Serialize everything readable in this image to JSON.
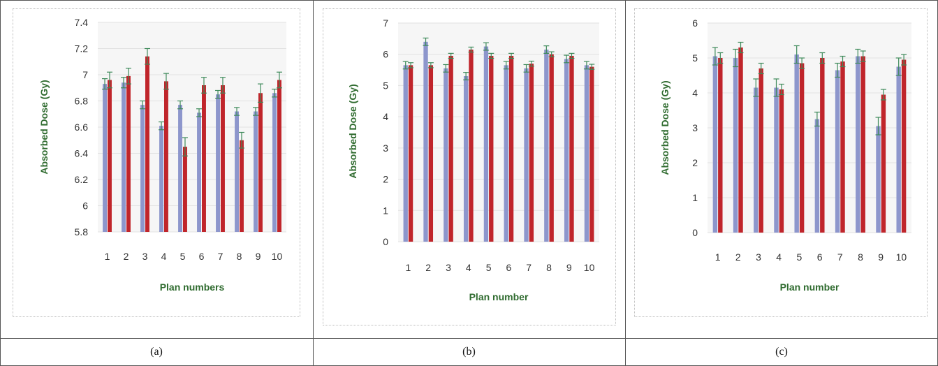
{
  "panels": [
    {
      "caption": "(a)"
    },
    {
      "caption": "(b)"
    },
    {
      "caption": "(c)"
    }
  ],
  "colors": {
    "series_blue": "#8d96cc",
    "series_red": "#c0252b",
    "error_bar": "#3e8a5a",
    "axis_label": "#2f6b2f",
    "grid": "#e2e2e2",
    "plot_bg": "#f6f6f6"
  },
  "chart_data": [
    {
      "type": "bar",
      "categories": [
        "1",
        "2",
        "3",
        "4",
        "5",
        "6",
        "7",
        "8",
        "9",
        "10"
      ],
      "xlabel": "Plan numbers",
      "ylabel": "Absorbed Dose (Gy)",
      "ylim": [
        5.8,
        7.4
      ],
      "yticks": [
        "5.8",
        "6",
        "6.2",
        "6.4",
        "6.6",
        "6.8",
        "7",
        "7.2",
        "7.4"
      ],
      "grid": true,
      "series": [
        {
          "values": [
            6.93,
            6.94,
            6.77,
            6.61,
            6.77,
            6.71,
            6.85,
            6.72,
            6.72,
            6.86
          ],
          "errors": [
            0.04,
            0.04,
            0.03,
            0.03,
            0.03,
            0.03,
            0.03,
            0.03,
            0.03,
            0.03
          ]
        },
        {
          "values": [
            6.96,
            6.99,
            7.14,
            6.95,
            6.45,
            6.92,
            6.92,
            6.5,
            6.86,
            6.96
          ],
          "errors": [
            0.06,
            0.06,
            0.06,
            0.06,
            0.07,
            0.06,
            0.06,
            0.06,
            0.07,
            0.06
          ]
        }
      ]
    },
    {
      "type": "bar",
      "categories": [
        "1",
        "2",
        "3",
        "4",
        "5",
        "6",
        "7",
        "8",
        "9",
        "10"
      ],
      "xlabel": "Plan number",
      "ylabel": "Absorbed Dose (Gy)",
      "ylim": [
        0,
        7
      ],
      "yticks": [
        "0",
        "1",
        "2",
        "3",
        "4",
        "5",
        "6",
        "7"
      ],
      "grid": true,
      "series": [
        {
          "values": [
            5.65,
            6.4,
            5.55,
            5.3,
            6.25,
            5.65,
            5.55,
            6.15,
            5.85,
            5.65
          ],
          "errors": [
            0.12,
            0.12,
            0.12,
            0.12,
            0.12,
            0.12,
            0.12,
            0.12,
            0.12,
            0.12
          ]
        },
        {
          "values": [
            5.65,
            5.65,
            5.95,
            6.15,
            5.95,
            5.95,
            5.7,
            6.0,
            5.95,
            5.6
          ],
          "errors": [
            0.08,
            0.08,
            0.08,
            0.08,
            0.08,
            0.08,
            0.08,
            0.08,
            0.08,
            0.08
          ]
        }
      ]
    },
    {
      "type": "bar",
      "categories": [
        "1",
        "2",
        "3",
        "4",
        "5",
        "6",
        "7",
        "8",
        "9",
        "10"
      ],
      "xlabel": "Plan number",
      "ylabel": "Absorbed Dose (Gy)",
      "ylim": [
        0,
        6
      ],
      "yticks": [
        "0",
        "1",
        "2",
        "3",
        "4",
        "5",
        "6"
      ],
      "grid": true,
      "series": [
        {
          "values": [
            5.05,
            5.0,
            4.15,
            4.15,
            5.1,
            3.25,
            4.65,
            5.05,
            3.05,
            4.75
          ],
          "errors": [
            0.25,
            0.25,
            0.25,
            0.25,
            0.25,
            0.2,
            0.2,
            0.2,
            0.25,
            0.25
          ]
        },
        {
          "values": [
            5.0,
            5.3,
            4.7,
            4.1,
            4.85,
            5.0,
            4.9,
            5.05,
            3.95,
            4.95
          ],
          "errors": [
            0.15,
            0.15,
            0.15,
            0.15,
            0.15,
            0.15,
            0.15,
            0.15,
            0.15,
            0.15
          ]
        }
      ]
    }
  ]
}
